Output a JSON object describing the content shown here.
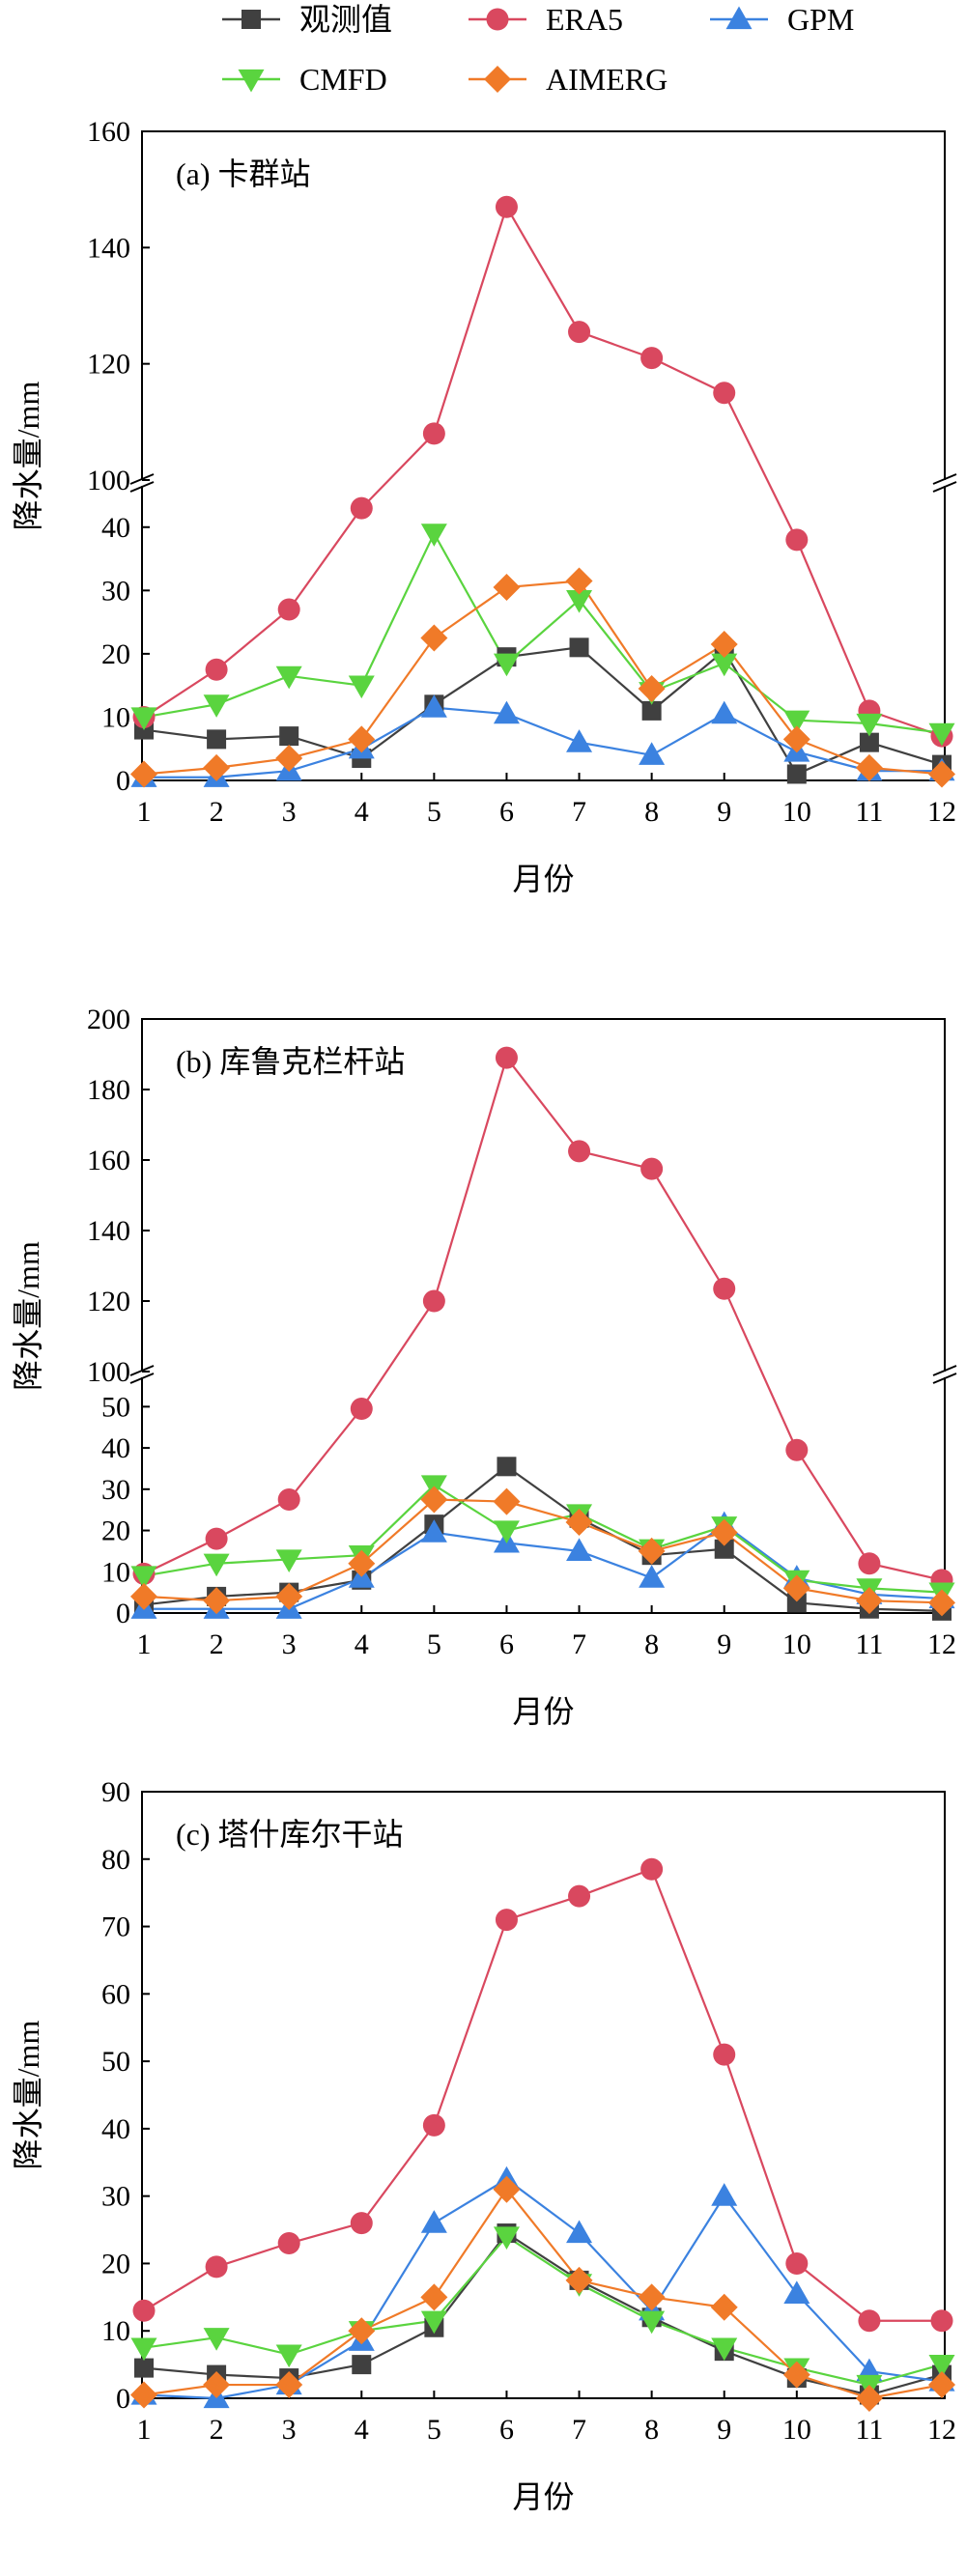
{
  "colors": {
    "观测值": "#404040",
    "ERA5": "#d9485f",
    "GPM": "#3b82e0",
    "CMFD": "#5ad43f",
    "AIMERG": "#f07a28"
  },
  "legend": [
    {
      "name": "观测值",
      "marker": "square"
    },
    {
      "name": "ERA5",
      "marker": "circle"
    },
    {
      "name": "GPM",
      "marker": "triangle-up"
    },
    {
      "name": "CMFD",
      "marker": "triangle-down"
    },
    {
      "name": "AIMERG",
      "marker": "diamond"
    }
  ],
  "chart_data": [
    {
      "type": "line",
      "title": "(a) 卡群站",
      "xlabel": "月份",
      "ylabel": "降水量/mm",
      "x": [
        1,
        2,
        3,
        4,
        5,
        6,
        7,
        8,
        9,
        10,
        11,
        12
      ],
      "axis_break": true,
      "ylim_lower": [
        0,
        45
      ],
      "ylim_upper": [
        100,
        160
      ],
      "yticks_lower": [
        0,
        10,
        20,
        30,
        40
      ],
      "yticks_upper": [
        100,
        120,
        140,
        160
      ],
      "grid": false,
      "legend_position": "top",
      "series": [
        {
          "name": "观测值",
          "values": [
            8,
            6.5,
            7,
            3.5,
            12,
            19.5,
            21,
            11,
            20.5,
            1,
            6,
            2.5
          ]
        },
        {
          "name": "ERA5",
          "values": [
            10,
            17.5,
            27,
            43,
            108,
            147,
            125.5,
            121,
            115,
            38,
            11,
            7
          ]
        },
        {
          "name": "GPM",
          "values": [
            0.5,
            0.5,
            1.5,
            5,
            11.5,
            10.5,
            6,
            4,
            10.5,
            4.5,
            1.5,
            1.5
          ]
        },
        {
          "name": "CMFD",
          "values": [
            10,
            12,
            16.5,
            15,
            39,
            18.5,
            28.5,
            14,
            18.5,
            9.5,
            9,
            7.5
          ]
        },
        {
          "name": "AIMERG",
          "values": [
            1,
            2,
            3.5,
            6.5,
            22.5,
            30.5,
            31.5,
            14.5,
            21.5,
            6.5,
            2,
            1
          ]
        }
      ]
    },
    {
      "type": "line",
      "title": "(b) 库鲁克栏杆站",
      "xlabel": "月份",
      "ylabel": "降水量/mm",
      "x": [
        1,
        2,
        3,
        4,
        5,
        6,
        7,
        8,
        9,
        10,
        11,
        12
      ],
      "axis_break": true,
      "ylim_lower": [
        0,
        55
      ],
      "ylim_upper": [
        100,
        200
      ],
      "yticks_lower": [
        0,
        10,
        20,
        30,
        40,
        50
      ],
      "yticks_upper": [
        100,
        120,
        140,
        160,
        180,
        200
      ],
      "grid": false,
      "legend_position": "top",
      "series": [
        {
          "name": "观测值",
          "values": [
            2,
            4,
            5,
            8,
            21.5,
            35.5,
            23,
            14,
            15.5,
            2.5,
            1,
            0.5
          ]
        },
        {
          "name": "ERA5",
          "values": [
            9.5,
            18,
            27.5,
            49.5,
            120,
            189,
            162.5,
            157.5,
            123.5,
            39.5,
            12,
            8
          ]
        },
        {
          "name": "GPM",
          "values": [
            1,
            1,
            1,
            8.5,
            19.5,
            17,
            15,
            8.5,
            21.5,
            8.5,
            4.5,
            3.5
          ]
        },
        {
          "name": "CMFD",
          "values": [
            9,
            12,
            13,
            14,
            31,
            20,
            24,
            15.5,
            21,
            8,
            6,
            5
          ]
        },
        {
          "name": "AIMERG",
          "values": [
            4,
            3,
            4,
            12,
            27.5,
            27,
            22,
            15,
            19.5,
            6,
            3,
            2.5
          ]
        }
      ]
    },
    {
      "type": "line",
      "title": "(c) 塔什库尔干站",
      "xlabel": "月份",
      "ylabel": "降水量/mm",
      "x": [
        1,
        2,
        3,
        4,
        5,
        6,
        7,
        8,
        9,
        10,
        11,
        12
      ],
      "axis_break": false,
      "ylim": [
        0,
        90
      ],
      "yticks": [
        0,
        10,
        20,
        30,
        40,
        50,
        60,
        70,
        80,
        90
      ],
      "grid": false,
      "legend_position": "top",
      "series": [
        {
          "name": "观测值",
          "values": [
            4.5,
            3.5,
            3,
            5,
            10.5,
            24.5,
            17.5,
            12,
            7,
            3,
            0.5,
            3.5
          ]
        },
        {
          "name": "ERA5",
          "values": [
            13,
            19.5,
            23,
            26,
            40.5,
            71,
            74.5,
            78.5,
            51,
            20,
            11.5,
            11.5
          ]
        },
        {
          "name": "GPM",
          "values": [
            0.5,
            0,
            2,
            8.5,
            26,
            32.5,
            24.5,
            13,
            30,
            15.5,
            4,
            2.5
          ]
        },
        {
          "name": "CMFD",
          "values": [
            7.5,
            9,
            6.5,
            10,
            11.5,
            24,
            17,
            11.5,
            7.5,
            4.5,
            2,
            5
          ]
        },
        {
          "name": "AIMERG",
          "values": [
            0.5,
            2,
            2,
            10,
            15,
            31,
            17.5,
            15,
            13.5,
            3.5,
            0,
            2
          ]
        }
      ]
    }
  ]
}
